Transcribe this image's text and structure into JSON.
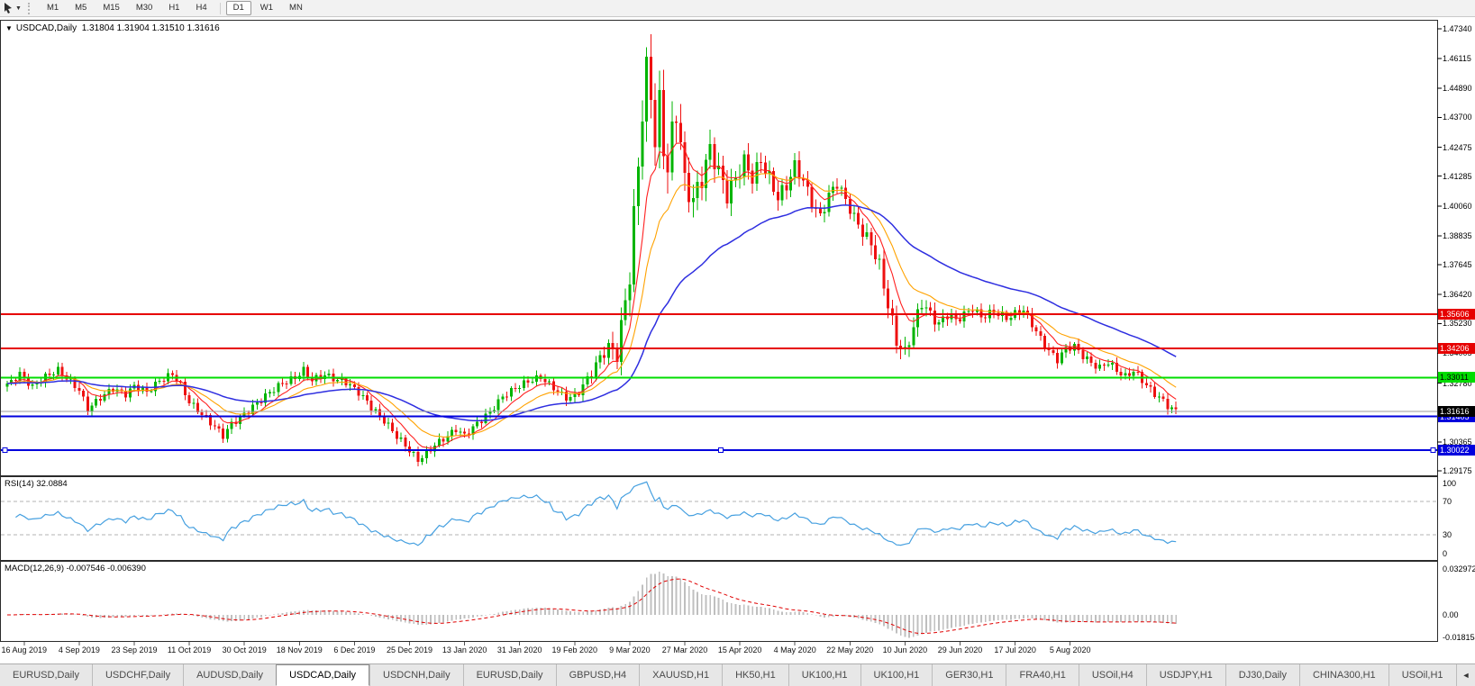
{
  "toolbar": {
    "timeframes": [
      "M1",
      "M5",
      "M15",
      "M30",
      "H1",
      "H4",
      "D1",
      "W1",
      "MN"
    ],
    "active_timeframe": "D1"
  },
  "chart": {
    "title_symbol": "USDCAD,Daily",
    "ohlc": "1.31804 1.31904 1.31510 1.31616",
    "current_price": {
      "label": "1.31616",
      "value": 1.31616,
      "bg": "#000000",
      "text": "#ffffff"
    },
    "price_axis_ticks": [
      "1.47340",
      "1.46115",
      "1.44890",
      "1.43700",
      "1.42475",
      "1.41285",
      "1.40060",
      "1.38835",
      "1.37645",
      "1.36420",
      "1.35230",
      "1.34005",
      "1.32780",
      "1.30365",
      "1.29175"
    ],
    "levels": [
      {
        "price": 1.35606,
        "label": "1.35606",
        "color": "#e60000",
        "text": "#ffffff",
        "selected": false
      },
      {
        "price": 1.34206,
        "label": "1.34206",
        "color": "#e60000",
        "text": "#ffffff",
        "selected": false
      },
      {
        "price": 1.33011,
        "label": "1.33011",
        "color": "#00dd00",
        "text": "#000000",
        "selected": false
      },
      {
        "price": 1.31405,
        "label": "1.31405",
        "color": "#0000dd",
        "text": "#ffffff",
        "selected": false
      },
      {
        "price": 1.30022,
        "label": "1.30022",
        "color": "#0000dd",
        "text": "#ffffff",
        "selected": true
      }
    ],
    "date_labels": [
      "16 Aug 2019",
      "4 Sep 2019",
      "23 Sep 2019",
      "11 Oct 2019",
      "30 Oct 2019",
      "18 Nov 2019",
      "6 Dec 2019",
      "25 Dec 2019",
      "13 Jan 2020",
      "31 Jan 2020",
      "19 Feb 2020",
      "9 Mar 2020",
      "27 Mar 2020",
      "15 Apr 2020",
      "4 May 2020",
      "22 May 2020",
      "10 Jun 2020",
      "29 Jun 2020",
      "17 Jul 2020",
      "5 Aug 2020"
    ]
  },
  "rsi": {
    "label": "RSI(14) 32.0884",
    "period": 14,
    "value": 32.0884,
    "axis_labels": [
      "100",
      "70",
      "30",
      "0"
    ],
    "level_lines": [
      70,
      30
    ],
    "line_color": "#46a0e0"
  },
  "macd": {
    "label": "MACD(12,26,9) -0.007546 -0.006390",
    "params": [
      12,
      26,
      9
    ],
    "main_value": -0.007546,
    "signal_value": -0.00639,
    "axis_labels": [
      "0.032972",
      "0.00",
      "-0.018154"
    ],
    "axis_values": [
      0.032972,
      0,
      -0.018154
    ],
    "histogram_color": "#bfbfbf",
    "signal_color": "#e00000"
  },
  "tabs": {
    "items": [
      "EURUSD,Daily",
      "USDCHF,Daily",
      "AUDUSD,Daily",
      "USDCAD,Daily",
      "USDCNH,Daily",
      "EURUSD,Daily",
      "GBPUSD,H4",
      "XAUUSD,H1",
      "HK50,H1",
      "UK100,H1",
      "UK100,H1",
      "GER30,H1",
      "FRA40,H1",
      "USOil,H4",
      "USDJPY,H1",
      "DJ30,Daily",
      "CHINA300,H1",
      "USOil,H1"
    ],
    "active_index": 3,
    "scroll_left": "◄",
    "scroll_right": "►"
  },
  "chart_data": {
    "type": "candlestick",
    "symbol": "USDCAD",
    "timeframe": "Daily",
    "title": "USDCAD,Daily 1.31804 1.31904 1.31510 1.31616",
    "ylim": [
      1.29175,
      1.4734
    ],
    "n_candles": 277,
    "up_color": "#00b400",
    "down_color": "#ee1111",
    "close_waypoints": [
      [
        0,
        1.327
      ],
      [
        3,
        1.3315
      ],
      [
        6,
        1.3262
      ],
      [
        9,
        1.3305
      ],
      [
        12,
        1.3332
      ],
      [
        14,
        1.33
      ],
      [
        17,
        1.325
      ],
      [
        19,
        1.317
      ],
      [
        22,
        1.3218
      ],
      [
        25,
        1.3256
      ],
      [
        28,
        1.3232
      ],
      [
        30,
        1.3265
      ],
      [
        33,
        1.3242
      ],
      [
        36,
        1.3288
      ],
      [
        39,
        1.3315
      ],
      [
        41,
        1.327
      ],
      [
        43,
        1.32
      ],
      [
        46,
        1.315
      ],
      [
        49,
        1.31
      ],
      [
        51,
        1.3062
      ],
      [
        53,
        1.311
      ],
      [
        56,
        1.315
      ],
      [
        59,
        1.3195
      ],
      [
        62,
        1.324
      ],
      [
        65,
        1.3278
      ],
      [
        68,
        1.33
      ],
      [
        70,
        1.333
      ],
      [
        72,
        1.329
      ],
      [
        75,
        1.3312
      ],
      [
        78,
        1.329
      ],
      [
        80,
        1.3282
      ],
      [
        83,
        1.324
      ],
      [
        86,
        1.318
      ],
      [
        89,
        1.3125
      ],
      [
        92,
        1.306
      ],
      [
        95,
        1.3002
      ],
      [
        97,
        1.2962
      ],
      [
        99,
        1.2988
      ],
      [
        101,
        1.3025
      ],
      [
        104,
        1.306
      ],
      [
        106,
        1.309
      ],
      [
        108,
        1.3062
      ],
      [
        111,
        1.3112
      ],
      [
        114,
        1.316
      ],
      [
        117,
        1.3222
      ],
      [
        120,
        1.3258
      ],
      [
        123,
        1.3285
      ],
      [
        126,
        1.3302
      ],
      [
        129,
        1.3258
      ],
      [
        132,
        1.3218
      ],
      [
        134,
        1.3222
      ],
      [
        136,
        1.3268
      ],
      [
        138,
        1.3322
      ],
      [
        140,
        1.3385
      ],
      [
        142,
        1.3425
      ],
      [
        144,
        1.3395
      ],
      [
        146,
        1.362
      ],
      [
        147,
        1.372
      ],
      [
        148,
        1.396
      ],
      [
        149,
        1.418
      ],
      [
        150,
        1.439
      ],
      [
        151,
        1.456
      ],
      [
        152,
        1.447
      ],
      [
        153,
        1.428
      ],
      [
        154,
        1.442
      ],
      [
        155,
        1.425
      ],
      [
        156,
        1.416
      ],
      [
        157,
        1.43
      ],
      [
        158,
        1.439
      ],
      [
        159,
        1.427
      ],
      [
        160,
        1.41
      ],
      [
        162,
        1.403
      ],
      [
        164,
        1.412
      ],
      [
        166,
        1.424
      ],
      [
        168,
        1.415
      ],
      [
        170,
        1.405
      ],
      [
        172,
        1.412
      ],
      [
        174,
        1.419
      ],
      [
        176,
        1.412
      ],
      [
        178,
        1.4195
      ],
      [
        180,
        1.412
      ],
      [
        182,
        1.404
      ],
      [
        184,
        1.409
      ],
      [
        186,
        1.417
      ],
      [
        188,
        1.411
      ],
      [
        190,
        1.402
      ],
      [
        192,
        1.396
      ],
      [
        194,
        1.405
      ],
      [
        196,
        1.41
      ],
      [
        198,
        1.403
      ],
      [
        200,
        1.396
      ],
      [
        202,
        1.39
      ],
      [
        204,
        1.385
      ],
      [
        206,
        1.376
      ],
      [
        208,
        1.36
      ],
      [
        210,
        1.345
      ],
      [
        212,
        1.34
      ],
      [
        214,
        1.351
      ],
      [
        216,
        1.361
      ],
      [
        218,
        1.356
      ],
      [
        220,
        1.352
      ],
      [
        222,
        1.356
      ],
      [
        224,
        1.3535
      ],
      [
        226,
        1.356
      ],
      [
        228,
        1.3585
      ],
      [
        230,
        1.355
      ],
      [
        233,
        1.3572
      ],
      [
        236,
        1.3545
      ],
      [
        238,
        1.3562
      ],
      [
        240,
        1.358
      ],
      [
        242,
        1.352
      ],
      [
        244,
        1.346
      ],
      [
        246,
        1.341
      ],
      [
        248,
        1.3375
      ],
      [
        250,
        1.342
      ],
      [
        252,
        1.343
      ],
      [
        254,
        1.339
      ],
      [
        256,
        1.336
      ],
      [
        258,
        1.334
      ],
      [
        260,
        1.3365
      ],
      [
        262,
        1.333
      ],
      [
        264,
        1.3305
      ],
      [
        266,
        1.333
      ],
      [
        268,
        1.329
      ],
      [
        270,
        1.325
      ],
      [
        272,
        1.322
      ],
      [
        274,
        1.3185
      ],
      [
        276,
        1.3162
      ]
    ],
    "range_waypoints": [
      [
        0,
        0.006
      ],
      [
        90,
        0.0065
      ],
      [
        130,
        0.006
      ],
      [
        140,
        0.009
      ],
      [
        146,
        0.018
      ],
      [
        150,
        0.026
      ],
      [
        153,
        0.03
      ],
      [
        158,
        0.024
      ],
      [
        165,
        0.018
      ],
      [
        175,
        0.014
      ],
      [
        190,
        0.011
      ],
      [
        200,
        0.01
      ],
      [
        208,
        0.014
      ],
      [
        214,
        0.012
      ],
      [
        225,
        0.0075
      ],
      [
        240,
        0.007
      ],
      [
        255,
        0.0065
      ],
      [
        276,
        0.007
      ]
    ],
    "moving_averages": [
      {
        "name": "fast",
        "window": 8,
        "color": "#ff2020"
      },
      {
        "name": "mid",
        "window": 17,
        "color": "#ffa200"
      },
      {
        "name": "slow",
        "window": 48,
        "color": "#2e2ee0"
      }
    ],
    "horizontal_levels": [
      1.35606,
      1.34206,
      1.33011,
      1.31405,
      1.30022
    ],
    "rsi": {
      "period": 14,
      "last": 32.0884,
      "overbought": 70,
      "oversold": 30
    },
    "macd": {
      "fast": 12,
      "slow": 26,
      "signal": 9,
      "last_main": -0.007546,
      "last_signal": -0.00639,
      "scale_max": 0.032972,
      "scale_min": -0.018154
    }
  }
}
